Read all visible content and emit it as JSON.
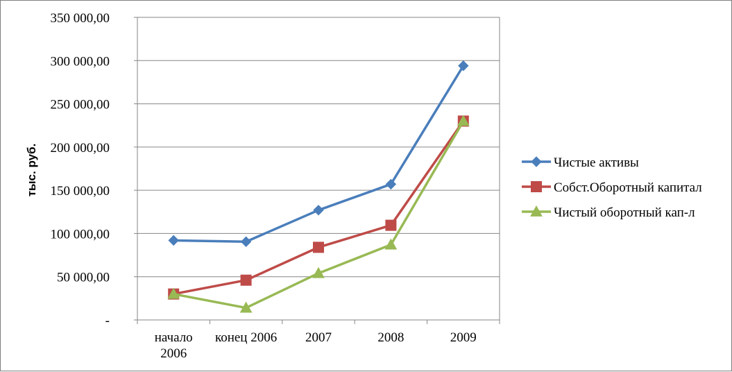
{
  "chart_data": {
    "type": "line",
    "title": "",
    "xlabel": "",
    "ylabel": "тыс. руб.",
    "ylim": [
      0,
      350000
    ],
    "y_ticks": [
      {
        "value": 0,
        "label": "-"
      },
      {
        "value": 50000,
        "label": "50 000,00"
      },
      {
        "value": 100000,
        "label": "100 000,00"
      },
      {
        "value": 150000,
        "label": "150 000,00"
      },
      {
        "value": 200000,
        "label": "200 000,00"
      },
      {
        "value": 250000,
        "label": "250 000,00"
      },
      {
        "value": 300000,
        "label": "300 000,00"
      },
      {
        "value": 350000,
        "label": "350 000,00"
      }
    ],
    "categories": [
      [
        "начало",
        "2006"
      ],
      [
        "конец 2006"
      ],
      [
        "2007"
      ],
      [
        "2008"
      ],
      [
        "2009"
      ]
    ],
    "grid": true,
    "legend_position": "right",
    "series": [
      {
        "name": "Чистые активы",
        "color": "#4a7ebb",
        "marker": "diamond",
        "values": [
          92000,
          90500,
          127000,
          157000,
          294000
        ]
      },
      {
        "name": "Собст.Оборотный капитал",
        "color": "#be4b48",
        "marker": "square",
        "values": [
          30000,
          46000,
          84000,
          109500,
          230000
        ]
      },
      {
        "name": "Чистый оборотный кап-л",
        "color": "#98b954",
        "marker": "triangle",
        "values": [
          30000,
          14000,
          54000,
          87000,
          230000
        ]
      }
    ]
  }
}
